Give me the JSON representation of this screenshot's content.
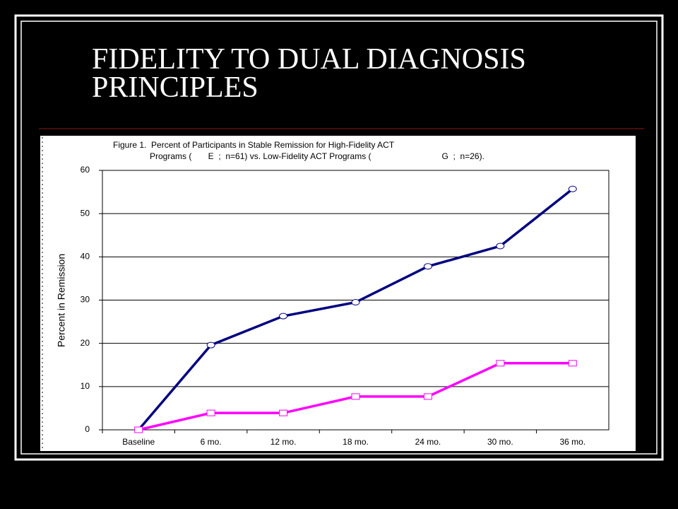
{
  "slide": {
    "title": "FIDELITY TO DUAL DIAGNOSIS PRINCIPLES"
  },
  "chart_data": {
    "type": "line",
    "title": [
      "Figure 1.  Percent of Participants in Stable Remission for High-Fidelity ACT",
      "Programs (       E  ;  n=61) vs. Low-Fidelity ACT Programs (                              G  ;  n=26)."
    ],
    "y_label": "Percent in Remission",
    "categories": [
      "Baseline",
      "6 mo.",
      "12 mo.",
      "18 mo.",
      "24 mo.",
      "30 mo.",
      "36 mo."
    ],
    "series": [
      {
        "color": "#000080",
        "marker": "circle",
        "values": [
          0,
          19.6,
          26.3,
          29.5,
          37.8,
          42.5,
          55.7
        ]
      },
      {
        "color": "#ff00ff",
        "marker": "square",
        "values": [
          0,
          3.9,
          3.9,
          7.7,
          7.7,
          15.4,
          15.4
        ]
      }
    ],
    "ylim": [
      0,
      60
    ],
    "yticks": [
      0,
      10,
      20,
      30,
      40,
      50,
      60
    ],
    "grid": true
  }
}
